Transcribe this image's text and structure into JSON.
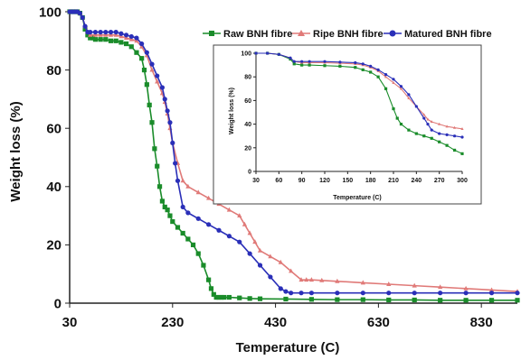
{
  "colors": {
    "raw": "#1a8c2a",
    "ripe": "#e07a78",
    "matured": "#2a2fb8"
  },
  "chart_data": [
    {
      "type": "line",
      "xlabel": "Temperature (C)",
      "ylabel": "Weight loss (%)",
      "xlim": [
        30,
        900
      ],
      "ylim": [
        0,
        100
      ],
      "xticks": [
        30,
        230,
        430,
        630,
        830
      ],
      "yticks": [
        0,
        20,
        40,
        60,
        80,
        100
      ],
      "legend_position": "top-right",
      "grid": false,
      "series": [
        {
          "name": "Raw BNH fibre",
          "key": "raw",
          "marker": "square",
          "x": [
            30,
            35,
            40,
            45,
            50,
            55,
            60,
            65,
            70,
            75,
            80,
            90,
            100,
            110,
            120,
            130,
            140,
            150,
            160,
            170,
            175,
            180,
            185,
            190,
            195,
            200,
            205,
            210,
            215,
            220,
            225,
            230,
            240,
            250,
            260,
            270,
            280,
            290,
            300,
            305,
            310,
            315,
            320,
            325,
            330,
            340,
            360,
            380,
            400,
            450,
            500,
            550,
            600,
            650,
            700,
            750,
            800,
            850,
            900
          ],
          "values": [
            100,
            100,
            100,
            100,
            99.5,
            98,
            94,
            92,
            91,
            91,
            90.5,
            90.5,
            90.5,
            90,
            90,
            89.5,
            89,
            88,
            86,
            84,
            80,
            75,
            68,
            62,
            53,
            47,
            40,
            35,
            33,
            32,
            30,
            28,
            26,
            24,
            22,
            20,
            17,
            13,
            8,
            5,
            3,
            2,
            2,
            2,
            2,
            2,
            1.8,
            1.6,
            1.5,
            1.4,
            1.3,
            1.2,
            1.2,
            1.1,
            1.1,
            1,
            1,
            1,
            1
          ]
        },
        {
          "name": "Ripe BNH fibre",
          "key": "ripe",
          "marker": "triangle",
          "x": [
            30,
            35,
            40,
            45,
            50,
            55,
            60,
            65,
            70,
            80,
            90,
            100,
            110,
            120,
            130,
            140,
            150,
            160,
            170,
            180,
            190,
            200,
            210,
            215,
            220,
            225,
            230,
            240,
            250,
            260,
            280,
            300,
            320,
            340,
            360,
            370,
            380,
            390,
            400,
            420,
            440,
            460,
            480,
            490,
            500,
            520,
            550,
            600,
            650,
            700,
            750,
            800,
            850,
            900
          ],
          "values": [
            100,
            100,
            100,
            100,
            99.5,
            98,
            95,
            93,
            92,
            92,
            92,
            92,
            92,
            92,
            91.5,
            91,
            90.5,
            90,
            88,
            85,
            80,
            76,
            72,
            69,
            65,
            60,
            55,
            48,
            42,
            40,
            38,
            36,
            34,
            32,
            30,
            27,
            24,
            21,
            18,
            16,
            14,
            11,
            8,
            8,
            8,
            7.8,
            7.5,
            7,
            6.5,
            6,
            5.5,
            5,
            4.5,
            4
          ]
        },
        {
          "name": "Matured BNH fibre",
          "key": "matured",
          "marker": "circle",
          "x": [
            30,
            35,
            40,
            45,
            50,
            55,
            60,
            65,
            70,
            80,
            90,
            100,
            110,
            120,
            130,
            140,
            150,
            160,
            170,
            180,
            190,
            200,
            210,
            215,
            220,
            225,
            230,
            235,
            240,
            250,
            260,
            280,
            300,
            320,
            340,
            360,
            380,
            400,
            420,
            440,
            450,
            460,
            480,
            500,
            550,
            600,
            650,
            700,
            750,
            800,
            850,
            900
          ],
          "values": [
            100,
            100,
            100,
            100,
            99.5,
            98,
            95,
            93,
            93,
            93,
            93,
            93,
            93,
            93,
            92.5,
            92,
            91.5,
            91,
            89,
            86,
            82,
            78,
            74,
            70,
            66,
            62,
            55,
            48,
            42,
            33,
            31,
            29,
            27,
            25,
            23,
            21,
            17,
            13,
            9,
            5,
            4,
            3.5,
            3.5,
            3.5,
            3.5,
            3.5,
            3.5,
            3.5,
            3.5,
            3.5,
            3.5,
            3.5
          ]
        }
      ]
    },
    {
      "type": "line",
      "role": "inset",
      "xlabel": "Temperature (C)",
      "ylabel": "Weight loss (%)",
      "xlim": [
        30,
        300
      ],
      "ylim": [
        0,
        100
      ],
      "xticks": [
        30,
        60,
        90,
        120,
        150,
        180,
        210,
        240,
        270,
        300
      ],
      "yticks": [
        0,
        20,
        40,
        60,
        80,
        100
      ],
      "grid": false,
      "series": [
        {
          "name": "Raw BNH fibre",
          "key": "raw",
          "marker": "square",
          "x": [
            30,
            45,
            60,
            75,
            80,
            90,
            100,
            120,
            140,
            160,
            170,
            180,
            190,
            200,
            210,
            215,
            220,
            230,
            240,
            250,
            260,
            270,
            280,
            290,
            300
          ],
          "values": [
            100,
            100,
            99,
            95,
            91,
            90,
            90,
            89.5,
            89,
            88,
            86,
            84,
            80,
            70,
            53,
            45,
            40,
            35,
            32,
            30,
            28,
            25,
            22,
            18,
            15
          ]
        },
        {
          "name": "Ripe BNH fibre",
          "key": "ripe",
          "marker": "triangle",
          "x": [
            30,
            45,
            60,
            75,
            80,
            90,
            100,
            120,
            140,
            160,
            170,
            180,
            190,
            200,
            210,
            220,
            230,
            240,
            250,
            255,
            260,
            270,
            280,
            290,
            300
          ],
          "values": [
            100,
            100,
            99,
            96,
            93,
            92,
            92,
            92,
            91.5,
            91,
            90,
            88,
            85,
            80,
            75,
            70,
            62,
            55,
            48,
            44,
            42,
            40,
            38,
            37,
            36
          ]
        },
        {
          "name": "Matured BNH fibre",
          "key": "matured",
          "marker": "circle",
          "x": [
            30,
            45,
            60,
            75,
            80,
            90,
            100,
            120,
            140,
            160,
            170,
            180,
            190,
            200,
            210,
            220,
            230,
            240,
            250,
            255,
            260,
            270,
            280,
            290,
            300
          ],
          "values": [
            100,
            100,
            99,
            96,
            93,
            93,
            93,
            93,
            92.5,
            92,
            91,
            89,
            86,
            82,
            78,
            72,
            65,
            55,
            45,
            40,
            35,
            32,
            31,
            30,
            29
          ]
        }
      ]
    }
  ]
}
